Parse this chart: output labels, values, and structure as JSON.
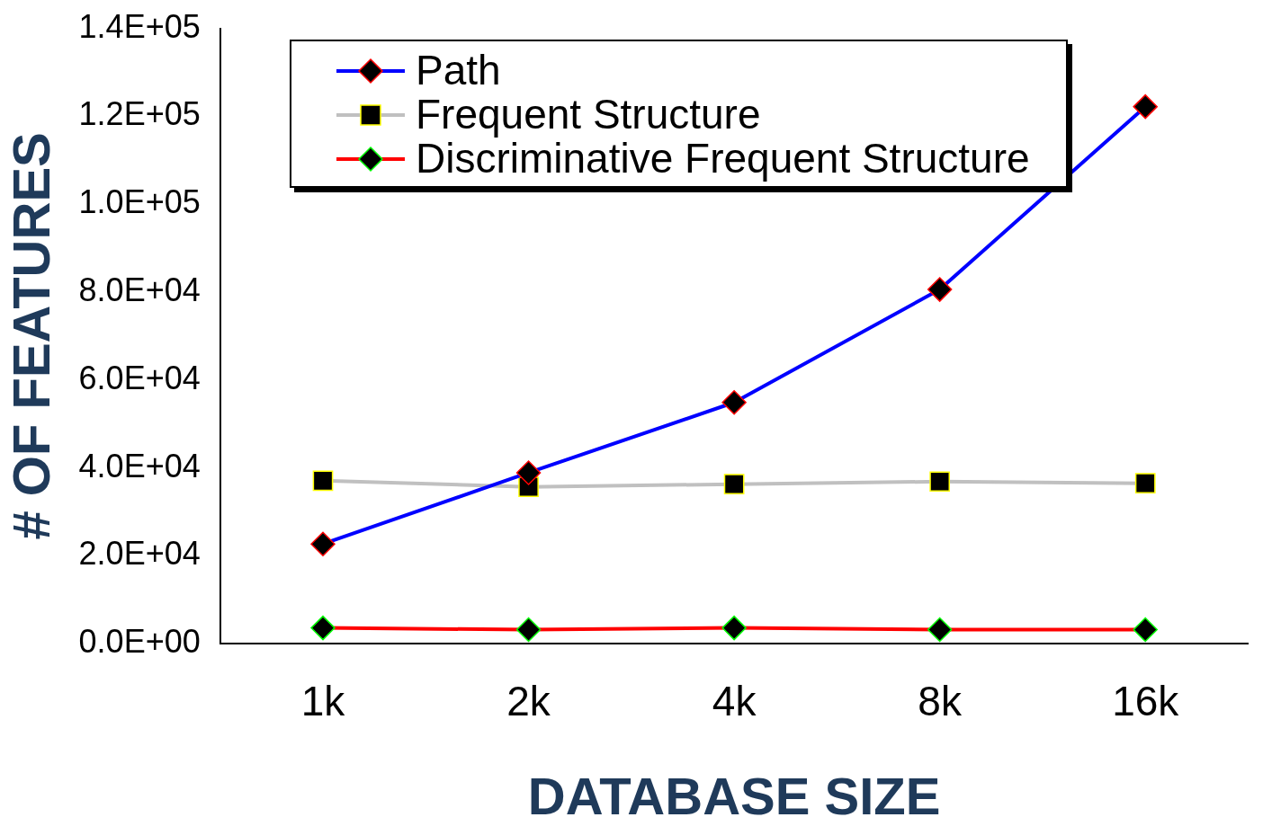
{
  "chart_data": {
    "type": "line",
    "xlabel": "DATABASE SIZE",
    "ylabel": "# OF FEATURES",
    "categories": [
      "1k",
      "2k",
      "4k",
      "8k",
      "16k"
    ],
    "ylim": [
      0,
      140000
    ],
    "yticks": [
      {
        "value": 0,
        "label": "0.0E+00"
      },
      {
        "value": 20000,
        "label": "2.0E+04"
      },
      {
        "value": 40000,
        "label": "4.0E+04"
      },
      {
        "value": 60000,
        "label": "6.0E+04"
      },
      {
        "value": 80000,
        "label": "8.0E+04"
      },
      {
        "value": 100000,
        "label": "1.0E+05"
      },
      {
        "value": 120000,
        "label": "1.2E+05"
      },
      {
        "value": 140000,
        "label": "1.4E+05"
      }
    ],
    "series": [
      {
        "name": "Path",
        "color": "#0000ff",
        "marker": "diamond",
        "values": [
          22700,
          38900,
          54900,
          80600,
          122200
        ]
      },
      {
        "name": "Frequent Structure",
        "color": "#c0c0c0",
        "marker": "square",
        "values": [
          37100,
          35700,
          36300,
          36900,
          36500
        ]
      },
      {
        "name": "Discriminative Frequent Structure",
        "color": "#ff0000",
        "marker": "diamond",
        "values": [
          3600,
          3200,
          3600,
          3200,
          3200
        ]
      }
    ],
    "grid": false,
    "legend": "top left",
    "line_style": "solid"
  }
}
